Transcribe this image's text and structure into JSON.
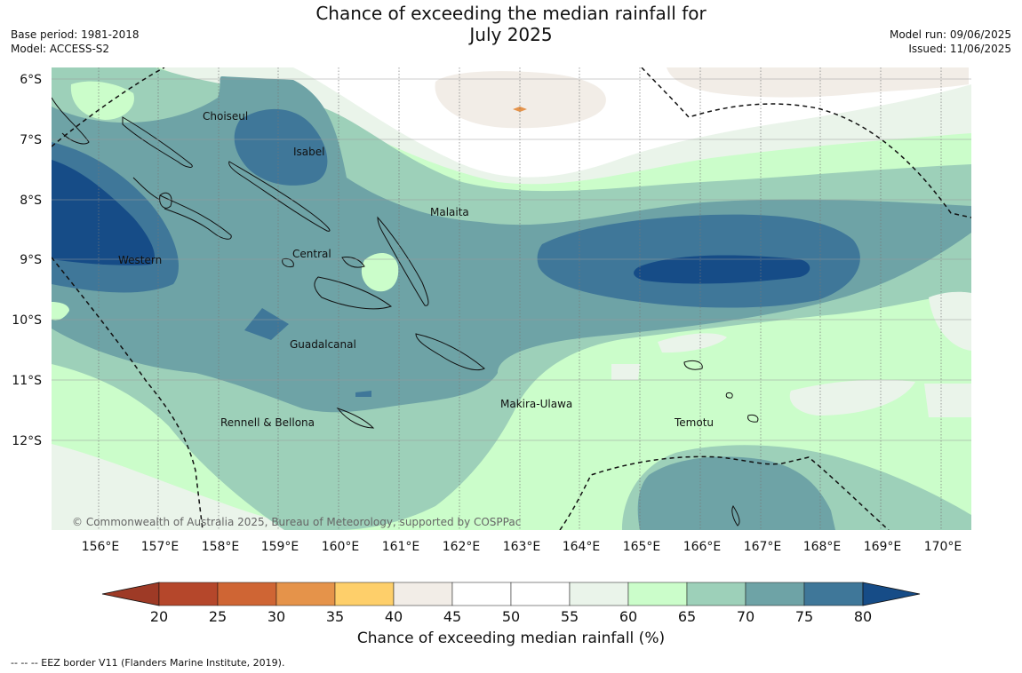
{
  "title": {
    "line1": "Chance of exceeding the median rainfall for",
    "line2": "July 2025"
  },
  "meta": {
    "base_period": "Base period: 1981-2018",
    "model": "Model: ACCESS-S2",
    "model_run": "Model run: 09/06/2025",
    "issued": "Issued: 11/06/2025"
  },
  "latitude_labels": [
    "6°S",
    "7°S",
    "8°S",
    "9°S",
    "10°S",
    "11°S",
    "12°S"
  ],
  "longitude_labels": [
    "156°E",
    "157°E",
    "158°E",
    "159°E",
    "160°E",
    "161°E",
    "162°E",
    "163°E",
    "164°E",
    "165°E",
    "166°E",
    "167°E",
    "168°E",
    "169°E",
    "170°E"
  ],
  "regions": [
    "Choiseul",
    "Isabel",
    "Malaita",
    "Western",
    "Central",
    "Guadalcanal",
    "Makira-Ulawa",
    "Rennell & Bellona",
    "Temotu"
  ],
  "copyright": "© Commonwealth of Australia 2025, Bureau of Meteorology, supported by COSPPac",
  "colorbar": {
    "title": "Chance of exceeding median rainfall (%)",
    "ticks": [
      "20",
      "25",
      "30",
      "35",
      "40",
      "45",
      "50",
      "55",
      "60",
      "65",
      "70",
      "75",
      "80"
    ],
    "colors": [
      "#9e3a26",
      "#b5472b",
      "#cf6534",
      "#e5934a",
      "#fecf6a",
      "#f2ede7",
      "#ffffff",
      "#ffffff",
      "#eaf4ea",
      "#cbfdca",
      "#9dd0b9",
      "#6ea3a6",
      "#3f7799",
      "#164c87"
    ]
  },
  "footnote": "--  --  -- EEZ border V11 (Flanders Marine Institute, 2019)."
}
